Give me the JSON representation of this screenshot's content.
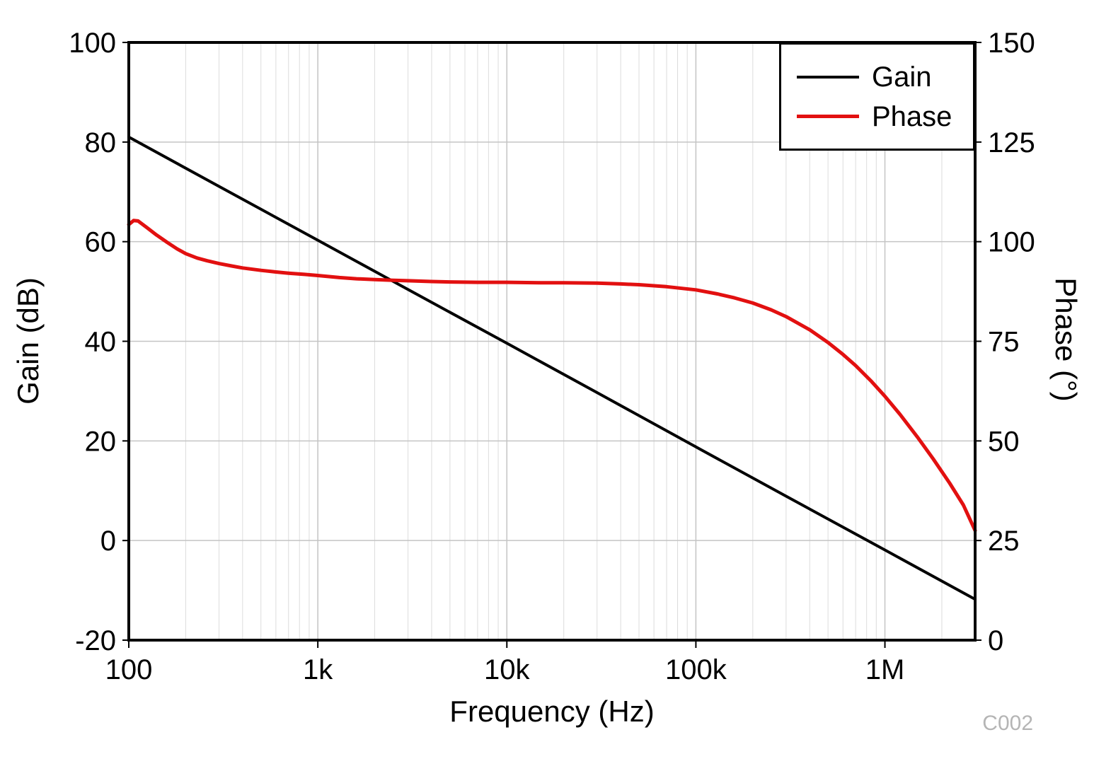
{
  "chart_data": {
    "type": "line",
    "title": "",
    "xlabel": "Frequency (Hz)",
    "ylabel_left": "Gain (dB)",
    "ylabel_right": "Phase (°)",
    "x_scale": "log",
    "xlim": [
      100,
      3000000
    ],
    "ylim_left": [
      -20,
      100
    ],
    "ylim_right": [
      0,
      150
    ],
    "x_ticks": [
      {
        "value": 100,
        "label": "100"
      },
      {
        "value": 1000,
        "label": "1k"
      },
      {
        "value": 10000,
        "label": "10k"
      },
      {
        "value": 100000,
        "label": "100k"
      },
      {
        "value": 1000000,
        "label": "1M"
      }
    ],
    "y_ticks_left": [
      {
        "value": -20,
        "label": "-20"
      },
      {
        "value": 0,
        "label": "0"
      },
      {
        "value": 20,
        "label": "20"
      },
      {
        "value": 40,
        "label": "40"
      },
      {
        "value": 60,
        "label": "60"
      },
      {
        "value": 80,
        "label": "80"
      },
      {
        "value": 100,
        "label": "100"
      }
    ],
    "y_ticks_right": [
      {
        "value": 0,
        "label": "0"
      },
      {
        "value": 25,
        "label": "25"
      },
      {
        "value": 50,
        "label": "50"
      },
      {
        "value": 75,
        "label": "75"
      },
      {
        "value": 100,
        "label": "100"
      },
      {
        "value": 125,
        "label": "125"
      },
      {
        "value": 150,
        "label": "150"
      }
    ],
    "grid": "major-horizontal, major+minor-vertical-log",
    "legend_position": "top-right-inside",
    "legend": [
      {
        "name": "Gain",
        "color": "#000000"
      },
      {
        "name": "Phase",
        "color": "#e21010"
      }
    ],
    "annotation": "C002",
    "colors": {
      "gain": "#000000",
      "phase": "#e21010",
      "grid_major": "#c4c4c4",
      "grid_minor": "#dcdcdc",
      "annotation": "#b5b5b5"
    },
    "series": [
      {
        "name": "Gain",
        "axis": "left",
        "color": "#000000",
        "width": 4,
        "points": [
          [
            100,
            81.0
          ],
          [
            300,
            71.1
          ],
          [
            1000,
            60.3
          ],
          [
            3000,
            50.4
          ],
          [
            10000,
            39.6
          ],
          [
            30000,
            29.7
          ],
          [
            100000,
            18.8
          ],
          [
            300000,
            8.9
          ],
          [
            1000000,
            -1.9
          ],
          [
            3000000,
            -11.8
          ]
        ]
      },
      {
        "name": "Phase",
        "axis": "right",
        "color": "#e21010",
        "width": 5,
        "points": [
          [
            100,
            104.3
          ],
          [
            106,
            105.3
          ],
          [
            112,
            105.2
          ],
          [
            125,
            103.5
          ],
          [
            140,
            101.7
          ],
          [
            160,
            99.8
          ],
          [
            180,
            98.2
          ],
          [
            200,
            97.0
          ],
          [
            230,
            95.9
          ],
          [
            260,
            95.2
          ],
          [
            300,
            94.5
          ],
          [
            350,
            93.9
          ],
          [
            400,
            93.4
          ],
          [
            500,
            92.8
          ],
          [
            600,
            92.4
          ],
          [
            700,
            92.1
          ],
          [
            850,
            91.8
          ],
          [
            1000,
            91.5
          ],
          [
            1300,
            91.0
          ],
          [
            1600,
            90.7
          ],
          [
            2000,
            90.5
          ],
          [
            2500,
            90.3
          ],
          [
            3000,
            90.2
          ],
          [
            4000,
            90.0
          ],
          [
            5000,
            89.9
          ],
          [
            7000,
            89.8
          ],
          [
            10000,
            89.8
          ],
          [
            15000,
            89.7
          ],
          [
            20000,
            89.7
          ],
          [
            30000,
            89.6
          ],
          [
            40000,
            89.4
          ],
          [
            50000,
            89.2
          ],
          [
            70000,
            88.7
          ],
          [
            100000,
            87.9
          ],
          [
            130000,
            86.9
          ],
          [
            160000,
            85.9
          ],
          [
            200000,
            84.6
          ],
          [
            250000,
            82.9
          ],
          [
            300000,
            81.2
          ],
          [
            400000,
            77.9
          ],
          [
            500000,
            74.7
          ],
          [
            600000,
            71.7
          ],
          [
            700000,
            68.9
          ],
          [
            850000,
            64.9
          ],
          [
            1000000,
            61.2
          ],
          [
            1200000,
            56.7
          ],
          [
            1500000,
            50.7
          ],
          [
            1800000,
            45.5
          ],
          [
            2200000,
            39.4
          ],
          [
            2600000,
            33.9
          ],
          [
            3000000,
            27.5
          ]
        ]
      }
    ]
  }
}
